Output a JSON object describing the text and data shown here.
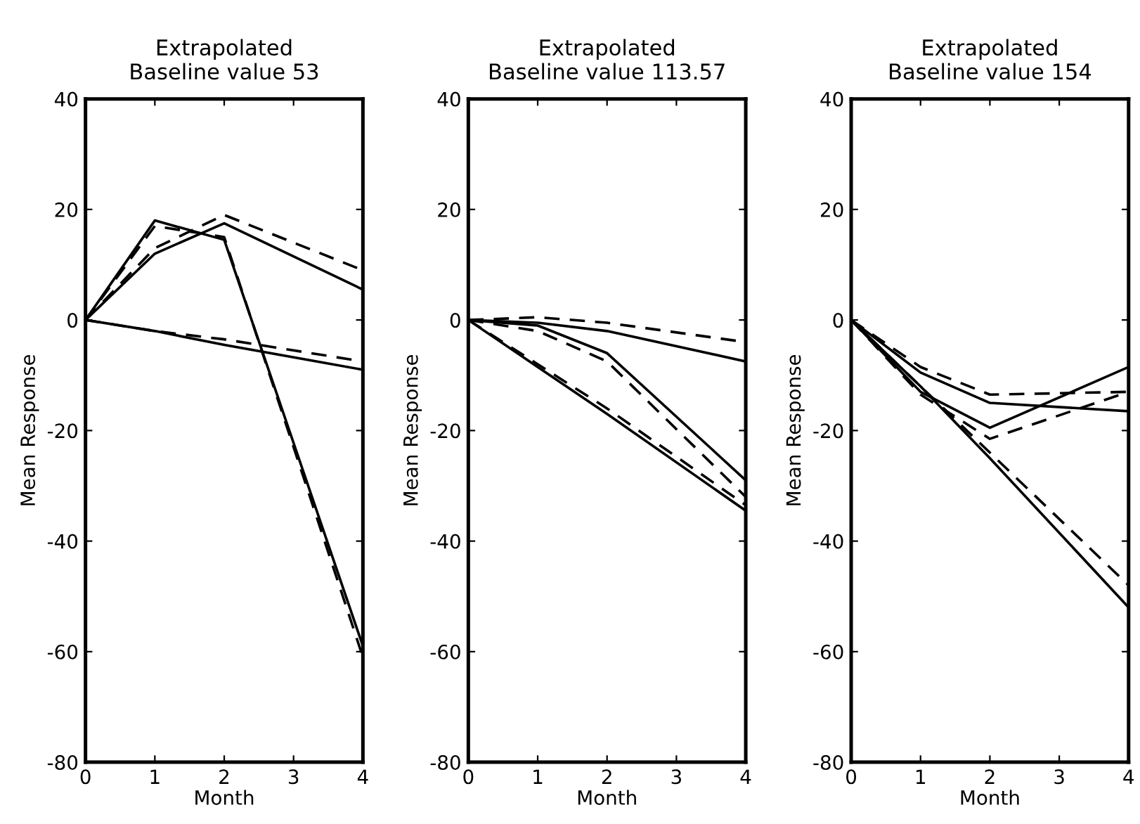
{
  "chart_data": [
    {
      "type": "line",
      "title": "Extrapolated\nBaseline value 53",
      "xlabel": "Month",
      "ylabel": "Mean Response",
      "xlim": [
        0,
        4
      ],
      "ylim": [
        -80,
        40
      ],
      "xticks": [
        0,
        1,
        2,
        3,
        4
      ],
      "yticks": [
        -80,
        -60,
        -40,
        -20,
        0,
        20,
        40
      ],
      "x": [
        0,
        1,
        2,
        4
      ],
      "grid": false,
      "legend": false,
      "series": [
        {
          "color": "#000000",
          "line_style": "solid",
          "values": [
            0,
            12,
            17.5,
            5.5
          ]
        },
        {
          "color": "#000000",
          "line_style": "dashed",
          "values": [
            0,
            13,
            19,
            9
          ]
        },
        {
          "color": "#000000",
          "line_style": "solid",
          "values": [
            0,
            18,
            14.5,
            -59
          ]
        },
        {
          "color": "#000000",
          "line_style": "dashed",
          "values": [
            0,
            17,
            15,
            -61
          ]
        },
        {
          "color": "#000000",
          "line_style": "solid",
          "values": [
            0,
            -2,
            -4.5,
            -9
          ]
        },
        {
          "color": "#000000",
          "line_style": "dashed",
          "values": [
            0,
            -2,
            -3.5,
            -7.5
          ]
        }
      ]
    },
    {
      "type": "line",
      "title": "Extrapolated\nBaseline value 113.57",
      "xlabel": "Month",
      "ylabel": "Mean Response",
      "xlim": [
        0,
        4
      ],
      "ylim": [
        -80,
        40
      ],
      "xticks": [
        0,
        1,
        2,
        3,
        4
      ],
      "yticks": [
        -80,
        -60,
        -40,
        -20,
        0,
        20,
        40
      ],
      "x": [
        0,
        1,
        2,
        4
      ],
      "grid": false,
      "legend": false,
      "series": [
        {
          "color": "#000000",
          "line_style": "solid",
          "values": [
            0,
            -0.5,
            -2,
            -7.5
          ]
        },
        {
          "color": "#000000",
          "line_style": "dashed",
          "values": [
            0,
            0.5,
            -0.5,
            -4
          ]
        },
        {
          "color": "#000000",
          "line_style": "solid",
          "values": [
            0,
            -1,
            -6,
            -29
          ]
        },
        {
          "color": "#000000",
          "line_style": "dashed",
          "values": [
            0,
            -2,
            -7.5,
            -32
          ]
        },
        {
          "color": "#000000",
          "line_style": "solid",
          "values": [
            0,
            -8.5,
            -17,
            -34.5
          ]
        },
        {
          "color": "#000000",
          "line_style": "dashed",
          "values": [
            0,
            -8,
            -16,
            -33.5
          ]
        }
      ]
    },
    {
      "type": "line",
      "title": "Extrapolated\nBaseline value 154",
      "xlabel": "Month",
      "ylabel": "Mean Response",
      "xlim": [
        0,
        4
      ],
      "ylim": [
        -80,
        40
      ],
      "xticks": [
        0,
        1,
        2,
        3,
        4
      ],
      "yticks": [
        -80,
        -60,
        -40,
        -20,
        0,
        20,
        40
      ],
      "x": [
        0,
        1,
        2,
        4
      ],
      "grid": false,
      "legend": false,
      "series": [
        {
          "color": "#000000",
          "line_style": "solid",
          "values": [
            0,
            -9.5,
            -15,
            -16.5
          ]
        },
        {
          "color": "#000000",
          "line_style": "dashed",
          "values": [
            0,
            -8.5,
            -13.5,
            -13
          ]
        },
        {
          "color": "#000000",
          "line_style": "solid",
          "values": [
            0,
            -13,
            -19.5,
            -8.5
          ]
        },
        {
          "color": "#000000",
          "line_style": "dashed",
          "values": [
            0,
            -13.5,
            -21.5,
            -13
          ]
        },
        {
          "color": "#000000",
          "line_style": "solid",
          "values": [
            0,
            -12,
            -25,
            -52
          ]
        },
        {
          "color": "#000000",
          "line_style": "dashed",
          "values": [
            0,
            -12,
            -24,
            -48
          ]
        }
      ]
    }
  ]
}
